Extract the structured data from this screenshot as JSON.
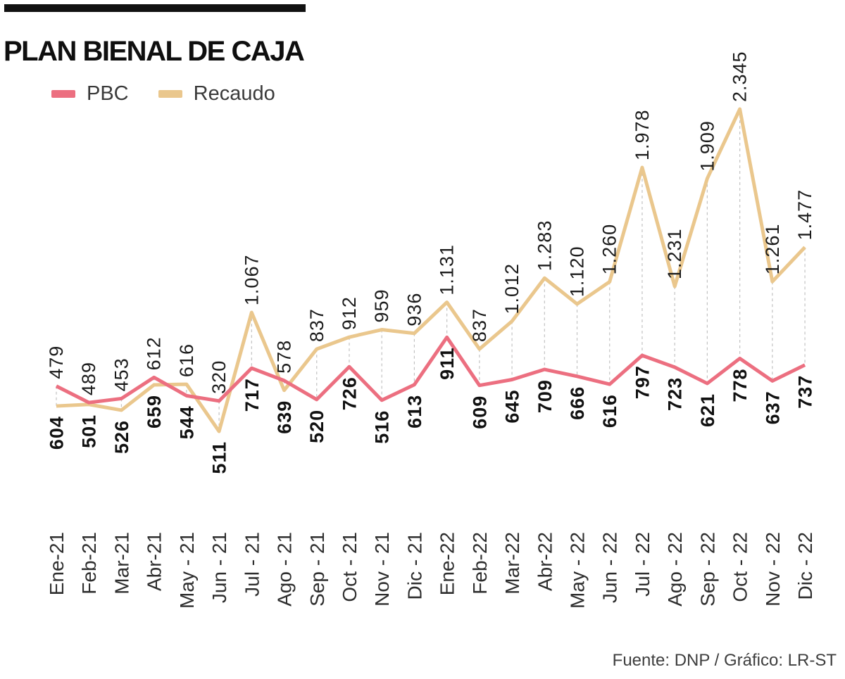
{
  "header": {
    "title": "PLAN BIENAL DE CAJA"
  },
  "legend": [
    {
      "label": "PBC",
      "color": "#EC6F80"
    },
    {
      "label": "Recaudo",
      "color": "#EAC78D"
    }
  ],
  "footer": {
    "source": "Fuente: DNP / Gráfico: LR-ST"
  },
  "chart_data": {
    "type": "line",
    "title": "PLAN BIENAL DE CAJA",
    "categories": [
      "Ene-21",
      "Feb-21",
      "Mar-21",
      "Abr-21",
      "May - 21",
      "Jun - 21",
      "Jul - 21",
      "Ago - 21",
      "Sep - 21",
      "Oct - 21",
      "Nov - 21",
      "Dic - 21",
      "Ene-22",
      "Feb-22",
      "Mar-22",
      "Abr-22",
      "May - 22",
      "Jun - 22",
      "Jul - 22",
      "Ago - 22",
      "Sep - 22",
      "Oct - 22",
      "Nov - 22",
      "Dic - 22"
    ],
    "series": [
      {
        "name": "PBC",
        "color": "#EC6F80",
        "values": [
          604,
          501,
          526,
          659,
          544,
          511,
          717,
          639,
          520,
          726,
          516,
          613,
          911,
          609,
          645,
          709,
          666,
          616,
          797,
          723,
          621,
          778,
          637,
          737
        ],
        "labels": [
          "604",
          "501",
          "526",
          "659",
          "544",
          "511",
          "717",
          "639",
          "520",
          "726",
          "516",
          "613",
          "911",
          "609",
          "645",
          "709",
          "666",
          "616",
          "797",
          "723",
          "621",
          "778",
          "637",
          "737"
        ],
        "label_weight": "bold",
        "label_position": "below-lower-point"
      },
      {
        "name": "Recaudo",
        "color": "#EAC78D",
        "values": [
          479,
          489,
          453,
          612,
          616,
          320,
          1067,
          578,
          837,
          912,
          959,
          936,
          1131,
          837,
          1012,
          1283,
          1120,
          1260,
          1978,
          1231,
          1909,
          2345,
          1261,
          1477
        ],
        "labels": [
          "479",
          "489",
          "453",
          "612",
          "616",
          "320",
          "1.067",
          "578",
          "837",
          "912",
          "959",
          "936",
          "1.131",
          "837",
          "1.012",
          "1.283",
          "1.120",
          "1.260",
          "1.978",
          "1.231",
          "1.909",
          "2.345",
          "1.261",
          "1.477"
        ],
        "label_weight": "normal",
        "label_position": "above-upper-point"
      }
    ],
    "connectors": "dashed vertical line joining the two series points at each month",
    "connector_color": "#C2C2C2",
    "grid": false,
    "y_axis_visible": false,
    "legend_position": "top-left",
    "ylim": [
      0,
      2450
    ],
    "source_note": "Fuente: DNP / Gráfico: LR-ST"
  }
}
